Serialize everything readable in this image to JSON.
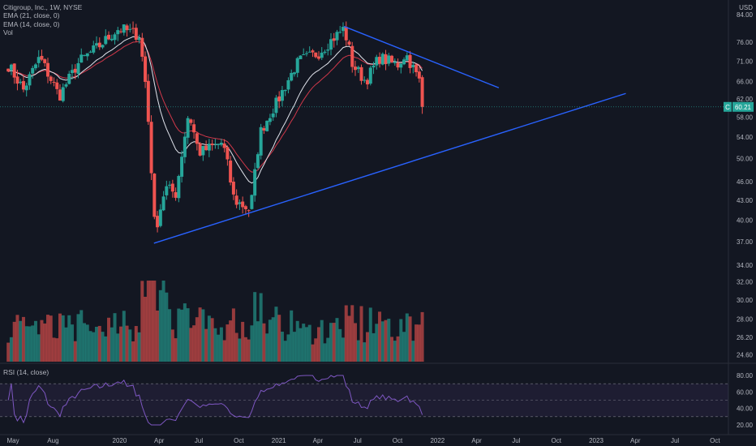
{
  "legend": {
    "title": "Citigroup, Inc., 1W, NYSE",
    "ema21": "EMA (21, close, 0)",
    "ema14": "EMA (14, close, 0)",
    "vol": "Vol"
  },
  "rsi_label": "RSI (14, close)",
  "currency": "USD",
  "price_tag": {
    "symbol": "C",
    "value": "60.21"
  },
  "colors": {
    "background": "#131722",
    "up": "#26a69a",
    "down": "#ef5350",
    "trendline": "#2962ff",
    "ema_fast": "#e0e3eb",
    "ema_slow": "#d0384a",
    "rsi": "#7e57c2"
  },
  "chart_data": [
    {
      "type": "candlestick",
      "title": "Citigroup, Inc., 1W, NYSE",
      "x_ticks": [
        "May",
        "Aug",
        "2020",
        "Apr",
        "Jul",
        "Oct",
        "2021",
        "Apr",
        "Jul",
        "Oct",
        "2022",
        "Apr",
        "Jul",
        "Oct",
        "2023",
        "Apr",
        "Jul",
        "Oct"
      ],
      "y_ticks": [
        "84.00",
        "76.00",
        "71.00",
        "66.00",
        "62.00",
        "58.00",
        "54.00",
        "50.00",
        "46.00",
        "43.00",
        "40.00",
        "37.00",
        "34.00",
        "32.00",
        "30.00",
        "28.00",
        "26.20",
        "24.60"
      ],
      "y_scale": "log",
      "last_price": 60.21,
      "waypoints": [
        {
          "date": "2019-04-20",
          "close": 70.0
        },
        {
          "date": "2019-05-25",
          "close": 64.0
        },
        {
          "date": "2019-07-01",
          "close": 72.0
        },
        {
          "date": "2019-08-15",
          "close": 62.5
        },
        {
          "date": "2019-10-01",
          "close": 71.0
        },
        {
          "date": "2019-11-15",
          "close": 75.0
        },
        {
          "date": "2019-12-31",
          "close": 80.0
        },
        {
          "date": "2020-02-15",
          "close": 78.0
        },
        {
          "date": "2020-03-01",
          "close": 65.0
        },
        {
          "date": "2020-03-22",
          "close": 38.0
        },
        {
          "date": "2020-04-15",
          "close": 45.0
        },
        {
          "date": "2020-05-10",
          "close": 44.0
        },
        {
          "date": "2020-06-08",
          "close": 59.0
        },
        {
          "date": "2020-07-01",
          "close": 51.0
        },
        {
          "date": "2020-08-25",
          "close": 53.0
        },
        {
          "date": "2020-09-20",
          "close": 43.0
        },
        {
          "date": "2020-10-28",
          "close": 41.5
        },
        {
          "date": "2020-11-20",
          "close": 55.0
        },
        {
          "date": "2021-01-01",
          "close": 62.0
        },
        {
          "date": "2021-02-15",
          "close": 71.0
        },
        {
          "date": "2021-04-01",
          "close": 73.0
        },
        {
          "date": "2021-05-31",
          "close": 80.0
        },
        {
          "date": "2021-06-20",
          "close": 70.0
        },
        {
          "date": "2021-07-20",
          "close": 66.0
        },
        {
          "date": "2021-08-20",
          "close": 72.0
        },
        {
          "date": "2021-10-01",
          "close": 70.0
        },
        {
          "date": "2021-10-20",
          "close": 73.0
        },
        {
          "date": "2021-11-20",
          "close": 66.0
        },
        {
          "date": "2021-12-03",
          "close": 60.21
        }
      ],
      "trendlines": [
        {
          "name": "upper",
          "from": {
            "date": "2021-05-31",
            "price": 80.5
          },
          "to": {
            "date": "2022-05-22",
            "price": 64.5
          }
        },
        {
          "name": "lower",
          "from": {
            "date": "2020-03-20",
            "price": 36.8
          },
          "to": {
            "date": "2023-03-10",
            "price": 63.2
          }
        }
      ]
    },
    {
      "type": "bar",
      "title": "Vol",
      "note": "weekly volume histogram, colored by candle direction; peaks near the March 2020 crash and June 2021"
    },
    {
      "type": "line",
      "title": "RSI (14, close)",
      "y_ticks": [
        "80.00",
        "60.00",
        "40.00",
        "20.00"
      ],
      "bands": {
        "upper": 70,
        "lower": 30
      },
      "last_value": 35
    }
  ]
}
